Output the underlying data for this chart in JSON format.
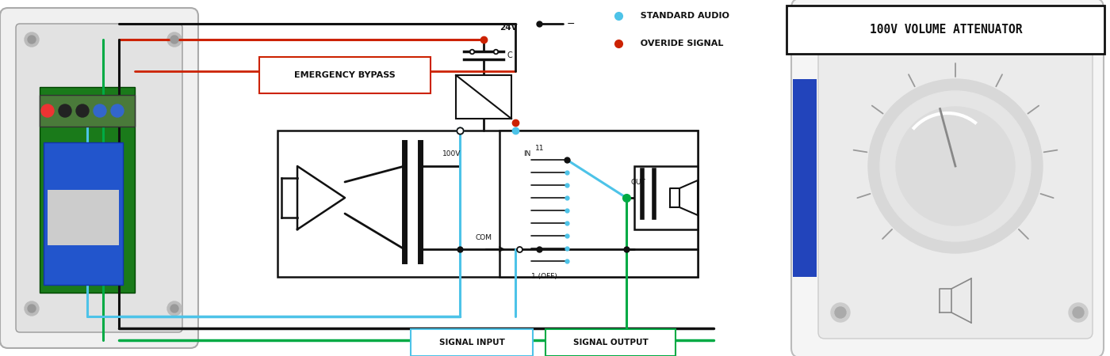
{
  "bg_color": "#ffffff",
  "title": "100V VOLUME ATTENUATOR",
  "legend_items": [
    {
      "label": "STANDARD AUDIO",
      "color": "#4DC3E8"
    },
    {
      "label": "OVERIDE SIGNAL",
      "color": "#CC2200"
    }
  ],
  "labels": {
    "emergency_bypass": "EMERGENCY BYPASS",
    "signal_input": "SIGNAL INPUT",
    "signal_output": "SIGNAL OUTPUT",
    "label_24v": "24V",
    "label_c": "C",
    "label_100v": "100V",
    "label_in": "IN",
    "label_com": "COM",
    "label_out": "OUT",
    "label_1off": "1 (OFF)",
    "label_11": "11"
  },
  "colors": {
    "black": "#111111",
    "red": "#CC2200",
    "blue": "#4DC3E8",
    "green": "#00AA44",
    "white": "#ffffff",
    "gray_light": "#e8e8e8",
    "gray_mid": "#bbbbbb",
    "pcb_green": "#1a7a1a",
    "cap_blue": "#2255cc",
    "device_bg": "#f2f2f2"
  }
}
